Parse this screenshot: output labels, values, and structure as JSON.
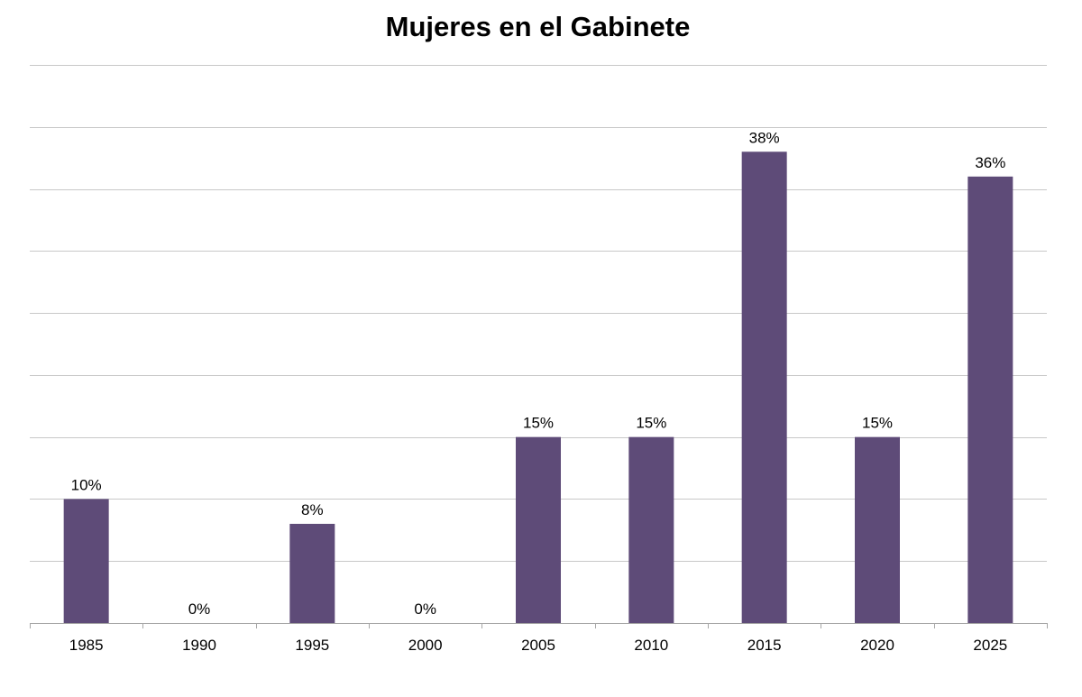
{
  "chart_data": {
    "type": "bar",
    "title": "Mujeres en el Gabinete",
    "xlabel": "",
    "ylabel": "",
    "categories": [
      "1985",
      "1990",
      "1995",
      "2000",
      "2005",
      "2010",
      "2015",
      "2020",
      "2025"
    ],
    "values": [
      10,
      0,
      8,
      0,
      15,
      15,
      38,
      15,
      36
    ],
    "data_labels": [
      "10%",
      "0%",
      "8%",
      "0%",
      "15%",
      "15%",
      "38%",
      "15%",
      "36%"
    ],
    "ylim": [
      0,
      45
    ],
    "grid": true,
    "legend": "none",
    "bar_color": "#5e4b78",
    "grid_color": "#c8c8c8",
    "axis_color": "#a6a6a6"
  }
}
